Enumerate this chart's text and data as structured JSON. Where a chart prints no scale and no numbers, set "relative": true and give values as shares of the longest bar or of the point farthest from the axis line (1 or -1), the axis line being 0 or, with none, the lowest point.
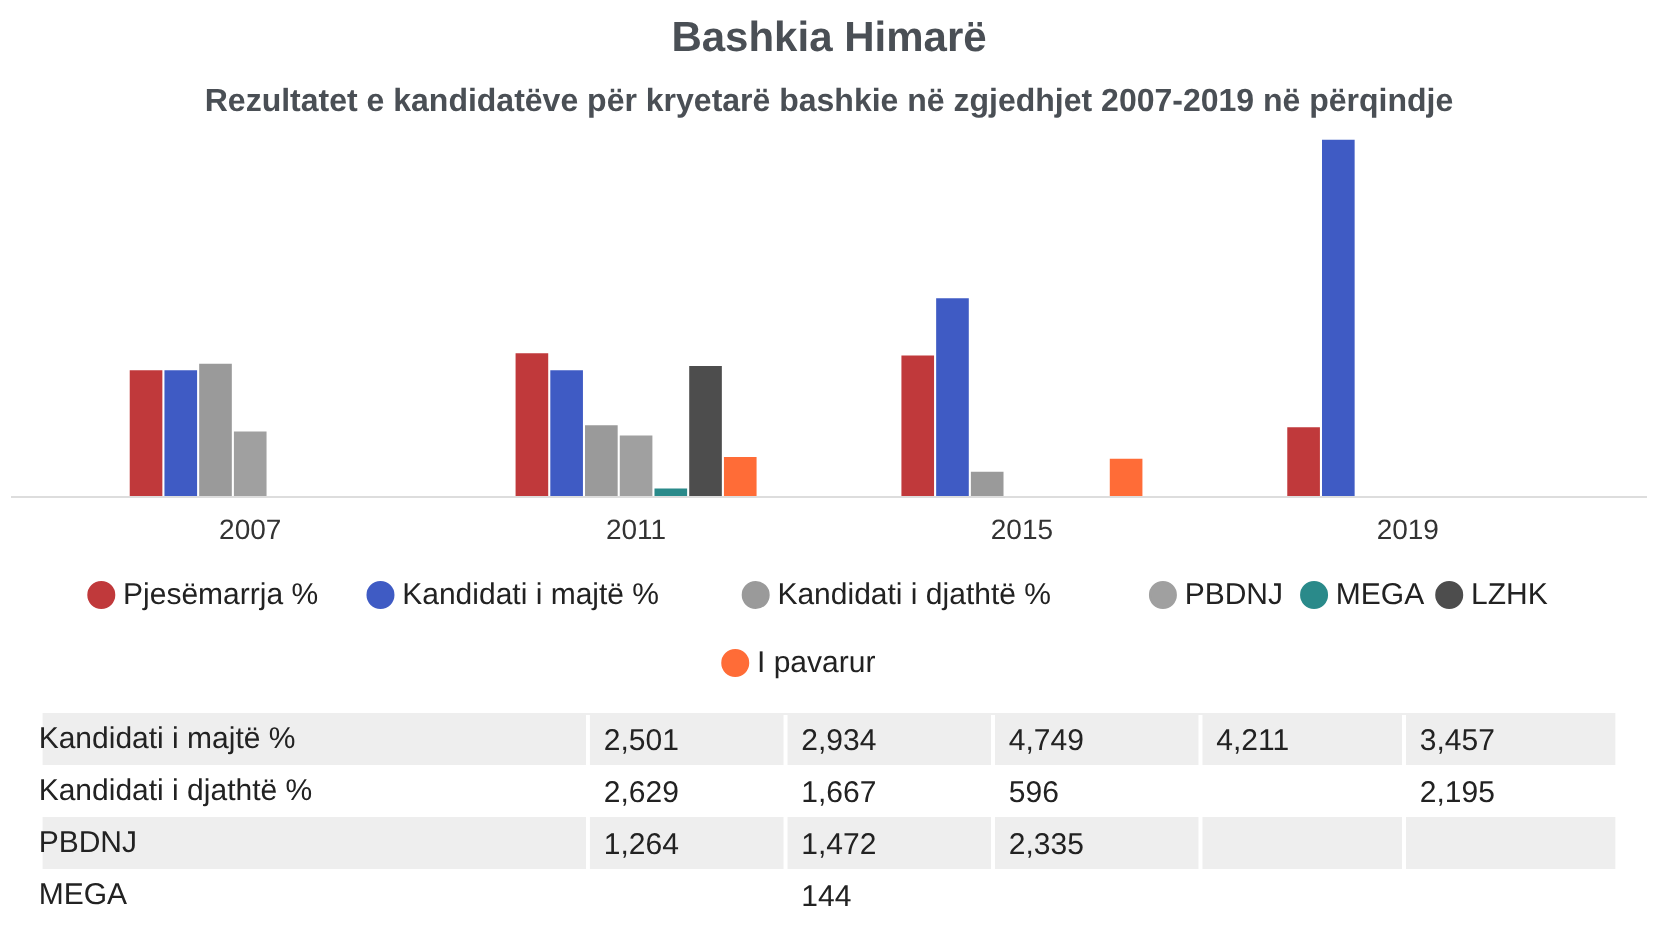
{
  "chart_data": {
    "type": "bar",
    "title": "Bashkia Himarë",
    "subtitle": "Rezultatet e kandidatëve për kryetarë bashkie në zgjedhjet 2007-2019 në përqindje",
    "categories": [
      "2007",
      "2011",
      "2015",
      "2019"
    ],
    "relative": true,
    "legend": "bottom",
    "grid": false,
    "series": [
      {
        "name": "Pjesëmarrja %",
        "color": "#c0393b",
        "values": [
          0.355,
          0.402,
          0.396,
          0.195
        ]
      },
      {
        "name": "Kandidati i majtë %",
        "color": "#3f5bc4",
        "values": [
          0.355,
          0.355,
          0.556,
          1
        ]
      },
      {
        "name": "Kandidati i djathtë %",
        "color": "#9a9a9a",
        "values": [
          0.373,
          0.201,
          0.071,
          null
        ]
      },
      {
        "name": "PBDNJ",
        "color": "#a0a0a0",
        "values": [
          0.183,
          0.172,
          null,
          null
        ]
      },
      {
        "name": "MEGA",
        "color": "#2a8a8a",
        "values": [
          null,
          0.024,
          null,
          null
        ]
      },
      {
        "name": "LZHK",
        "color": "#4d4d4d",
        "values": [
          null,
          0.367,
          null,
          null
        ]
      },
      {
        "name": "I pavarur",
        "color": "#ff6c37",
        "values": [
          null,
          0.112,
          0.107,
          null
        ]
      }
    ],
    "annotations": [
      "Kandidati i majtë %",
      "2,501",
      "2,934",
      "4,749",
      "4,211",
      "3,457",
      "Kandidati i djathtë %",
      "2,629",
      "1,667",
      "596",
      "2,195",
      "PBDNJ",
      "1,264",
      "1,472",
      "2,335",
      "MEGA",
      "144"
    ]
  }
}
